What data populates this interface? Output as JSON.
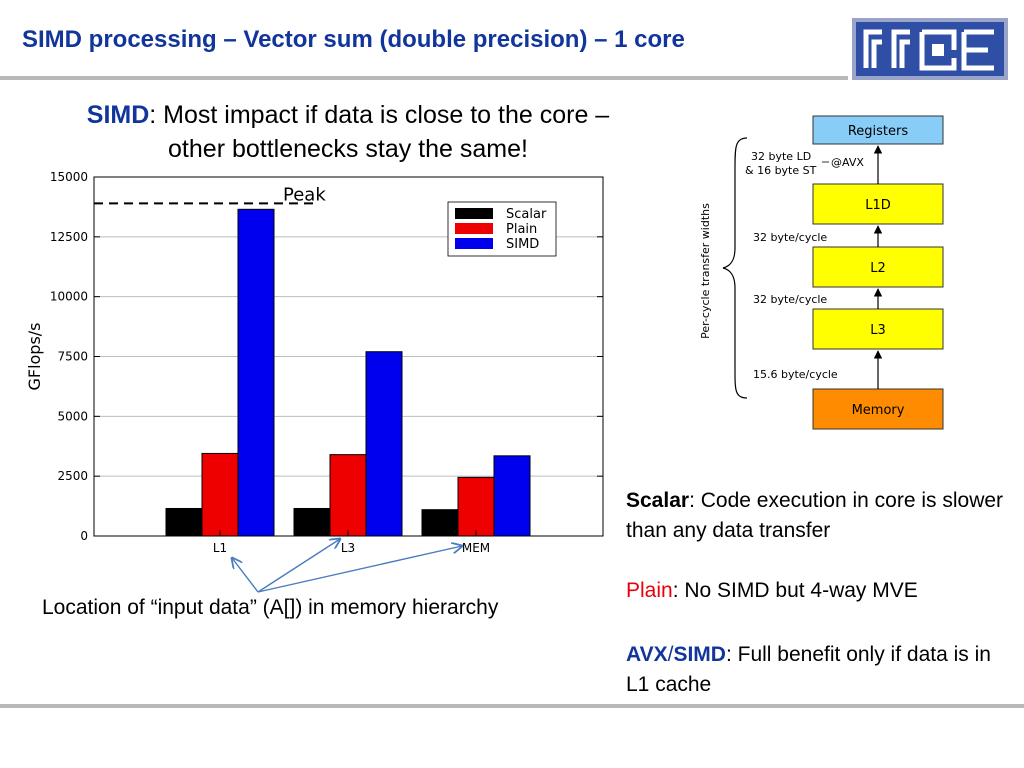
{
  "title": "SIMD processing – Vector sum (double precision) – 1 core",
  "headline": {
    "keyword": "SIMD",
    "line1_rest": ": Most impact if data is close to the core –",
    "line2": "other bottlenecks stay the same!"
  },
  "location_label": "Location of “input data” (A[]) in memory hierarchy",
  "explanations": {
    "scalar": {
      "keyword": "Scalar",
      "text": ": Code execution in core is slower than any data transfer"
    },
    "plain": {
      "keyword": "Plain",
      "text": ": No SIMD but 4-way MVE"
    },
    "avx": {
      "keyword1": "AVX",
      "sep": "/",
      "keyword2": "SIMD",
      "text": ": Full benefit only if data is in L1 cache"
    }
  },
  "colors": {
    "title": "#12359c",
    "scalar": "#000000",
    "plain": "#ee0000",
    "simd": "#0000ee",
    "registers": "#88ccf8",
    "cache": "#ffff00",
    "memory": "#ff8c00"
  },
  "chart_data": {
    "type": "bar",
    "categories": [
      "L1",
      "L3",
      "MEM"
    ],
    "series": [
      {
        "name": "Scalar",
        "values": [
          1150,
          1150,
          1100
        ]
      },
      {
        "name": "Plain",
        "values": [
          3450,
          3400,
          2450
        ]
      },
      {
        "name": "SIMD",
        "values": [
          13650,
          7700,
          3350
        ]
      }
    ],
    "ylabel": "GFlops/s",
    "ylim": [
      0,
      15000
    ],
    "yticks": [
      0,
      2500,
      5000,
      7500,
      10000,
      12500,
      15000
    ],
    "grid": true,
    "legend": "top-right",
    "annotation": {
      "text": "Peak",
      "value": 13900
    }
  },
  "hierarchy": {
    "axis_label": "Per-cycle transfer widths",
    "boxes": [
      "Registers",
      "L1D",
      "L2",
      "L3",
      "Memory"
    ],
    "links": [
      {
        "line1": "32 byte LD",
        "line2": "& 16 byte ST",
        "note": "@AVX"
      },
      {
        "line1": "32 byte/cycle"
      },
      {
        "line1": "32 byte/cycle"
      },
      {
        "line1": "15.6 byte/cycle"
      }
    ]
  }
}
